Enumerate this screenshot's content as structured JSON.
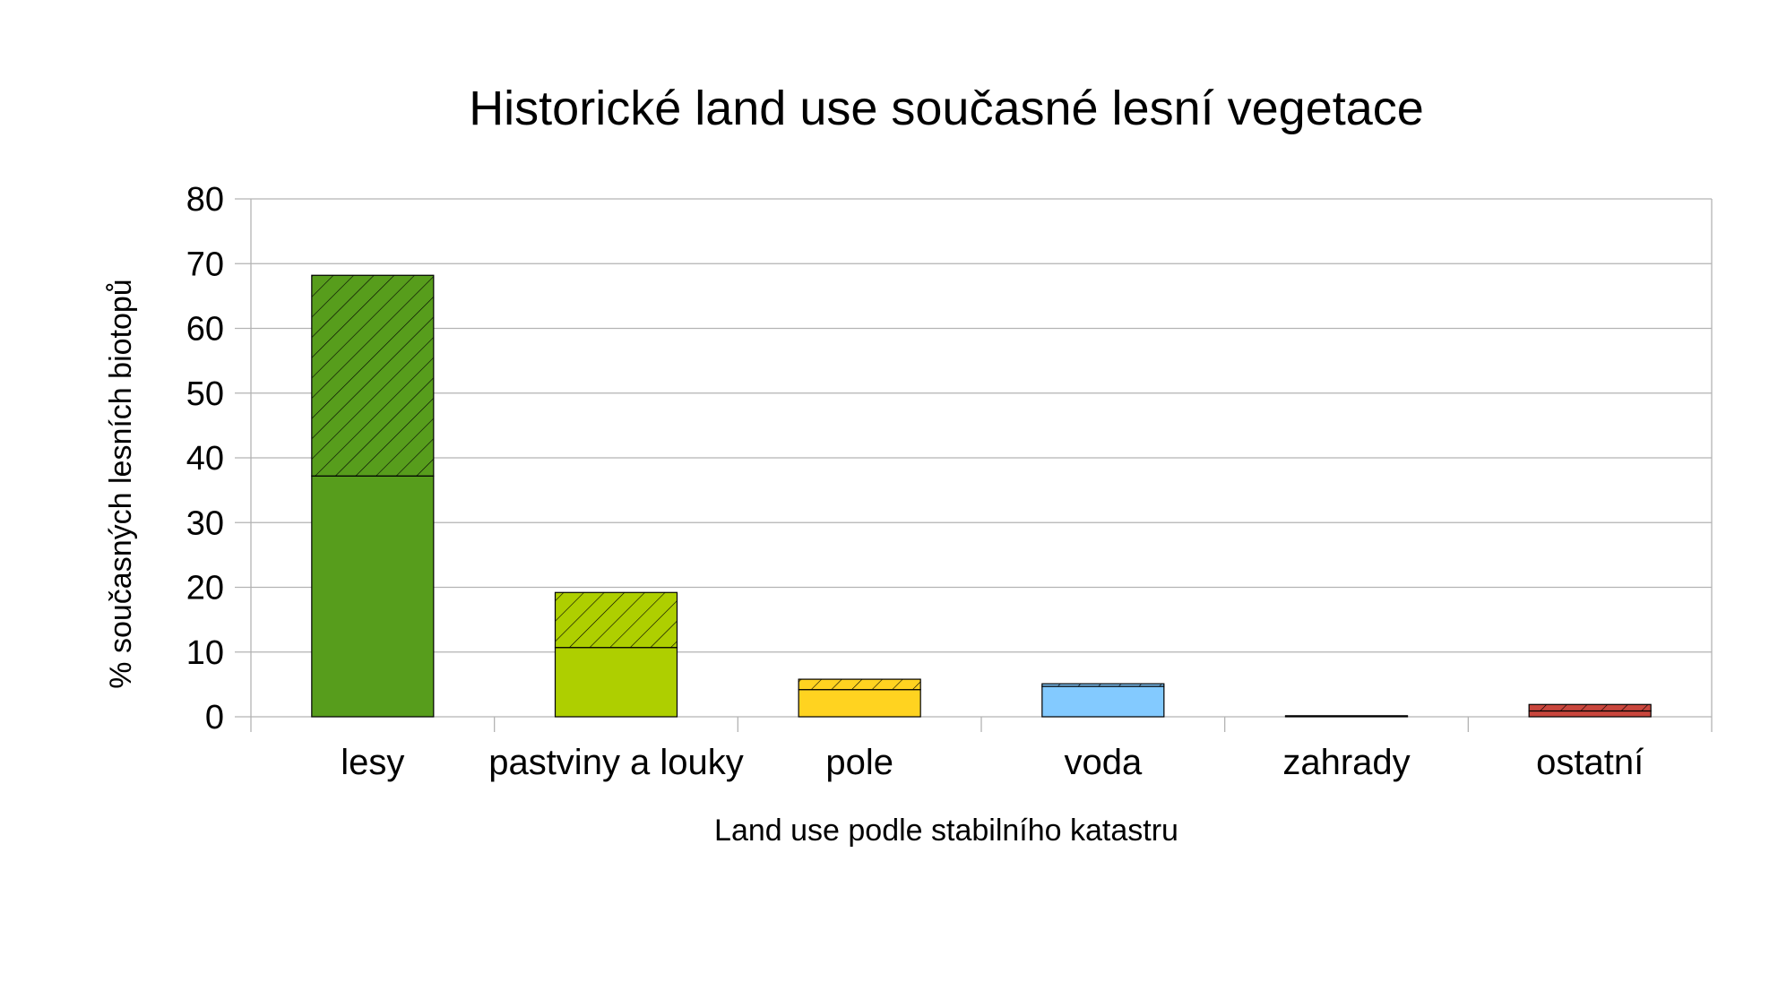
{
  "chart_data": {
    "type": "bar",
    "stacked": true,
    "title": "Historické land use současné lesní vegetace",
    "xlabel": "Land use podle stabilního katastru",
    "ylabel": "% současných lesních biotopů",
    "ylim": [
      0,
      80
    ],
    "yticks": [
      0,
      10,
      20,
      30,
      40,
      50,
      60,
      70,
      80
    ],
    "grid": true,
    "legend": "none",
    "categories": [
      "lesy",
      "pastviny a louky",
      "pole",
      "voda",
      "zahrady",
      "ostatní"
    ],
    "colors": [
      "#579d1c",
      "#aecf00",
      "#ffd320",
      "#83caff",
      "#7e0021",
      "#c9463d"
    ],
    "series": [
      {
        "fill": "solid",
        "values": [
          37.2,
          10.7,
          4.2,
          4.7,
          0.05,
          0.9
        ]
      },
      {
        "fill": "hatched",
        "values": [
          31.0,
          8.5,
          1.6,
          0.4,
          0.05,
          1.0
        ]
      }
    ]
  }
}
